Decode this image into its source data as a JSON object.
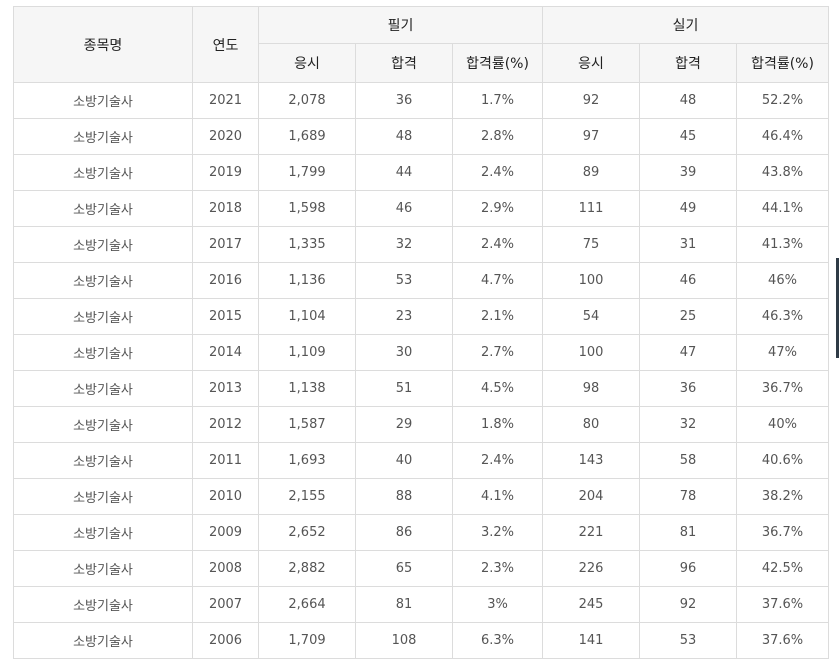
{
  "table": {
    "headers": {
      "subject": "종목명",
      "year": "연도",
      "written": "필기",
      "practical": "실기",
      "applicants": "응시",
      "passed": "합격",
      "pass_rate": "합격률(%)"
    },
    "rows": [
      {
        "subject": "소방기술사",
        "year": "2021",
        "w_apply": "2,078",
        "w_pass": "36",
        "w_rate": "1.7%",
        "p_apply": "92",
        "p_pass": "48",
        "p_rate": "52.2%"
      },
      {
        "subject": "소방기술사",
        "year": "2020",
        "w_apply": "1,689",
        "w_pass": "48",
        "w_rate": "2.8%",
        "p_apply": "97",
        "p_pass": "45",
        "p_rate": "46.4%"
      },
      {
        "subject": "소방기술사",
        "year": "2019",
        "w_apply": "1,799",
        "w_pass": "44",
        "w_rate": "2.4%",
        "p_apply": "89",
        "p_pass": "39",
        "p_rate": "43.8%"
      },
      {
        "subject": "소방기술사",
        "year": "2018",
        "w_apply": "1,598",
        "w_pass": "46",
        "w_rate": "2.9%",
        "p_apply": "111",
        "p_pass": "49",
        "p_rate": "44.1%"
      },
      {
        "subject": "소방기술사",
        "year": "2017",
        "w_apply": "1,335",
        "w_pass": "32",
        "w_rate": "2.4%",
        "p_apply": "75",
        "p_pass": "31",
        "p_rate": "41.3%"
      },
      {
        "subject": "소방기술사",
        "year": "2016",
        "w_apply": "1,136",
        "w_pass": "53",
        "w_rate": "4.7%",
        "p_apply": "100",
        "p_pass": "46",
        "p_rate": "46%"
      },
      {
        "subject": "소방기술사",
        "year": "2015",
        "w_apply": "1,104",
        "w_pass": "23",
        "w_rate": "2.1%",
        "p_apply": "54",
        "p_pass": "25",
        "p_rate": "46.3%"
      },
      {
        "subject": "소방기술사",
        "year": "2014",
        "w_apply": "1,109",
        "w_pass": "30",
        "w_rate": "2.7%",
        "p_apply": "100",
        "p_pass": "47",
        "p_rate": "47%"
      },
      {
        "subject": "소방기술사",
        "year": "2013",
        "w_apply": "1,138",
        "w_pass": "51",
        "w_rate": "4.5%",
        "p_apply": "98",
        "p_pass": "36",
        "p_rate": "36.7%"
      },
      {
        "subject": "소방기술사",
        "year": "2012",
        "w_apply": "1,587",
        "w_pass": "29",
        "w_rate": "1.8%",
        "p_apply": "80",
        "p_pass": "32",
        "p_rate": "40%"
      },
      {
        "subject": "소방기술사",
        "year": "2011",
        "w_apply": "1,693",
        "w_pass": "40",
        "w_rate": "2.4%",
        "p_apply": "143",
        "p_pass": "58",
        "p_rate": "40.6%"
      },
      {
        "subject": "소방기술사",
        "year": "2010",
        "w_apply": "2,155",
        "w_pass": "88",
        "w_rate": "4.1%",
        "p_apply": "204",
        "p_pass": "78",
        "p_rate": "38.2%"
      },
      {
        "subject": "소방기술사",
        "year": "2009",
        "w_apply": "2,652",
        "w_pass": "86",
        "w_rate": "3.2%",
        "p_apply": "221",
        "p_pass": "81",
        "p_rate": "36.7%"
      },
      {
        "subject": "소방기술사",
        "year": "2008",
        "w_apply": "2,882",
        "w_pass": "65",
        "w_rate": "2.3%",
        "p_apply": "226",
        "p_pass": "96",
        "p_rate": "42.5%"
      },
      {
        "subject": "소방기술사",
        "year": "2007",
        "w_apply": "2,664",
        "w_pass": "81",
        "w_rate": "3%",
        "p_apply": "245",
        "p_pass": "92",
        "p_rate": "37.6%"
      },
      {
        "subject": "소방기술사",
        "year": "2006",
        "w_apply": "1,709",
        "w_pass": "108",
        "w_rate": "6.3%",
        "p_apply": "141",
        "p_pass": "53",
        "p_rate": "37.6%"
      }
    ]
  }
}
